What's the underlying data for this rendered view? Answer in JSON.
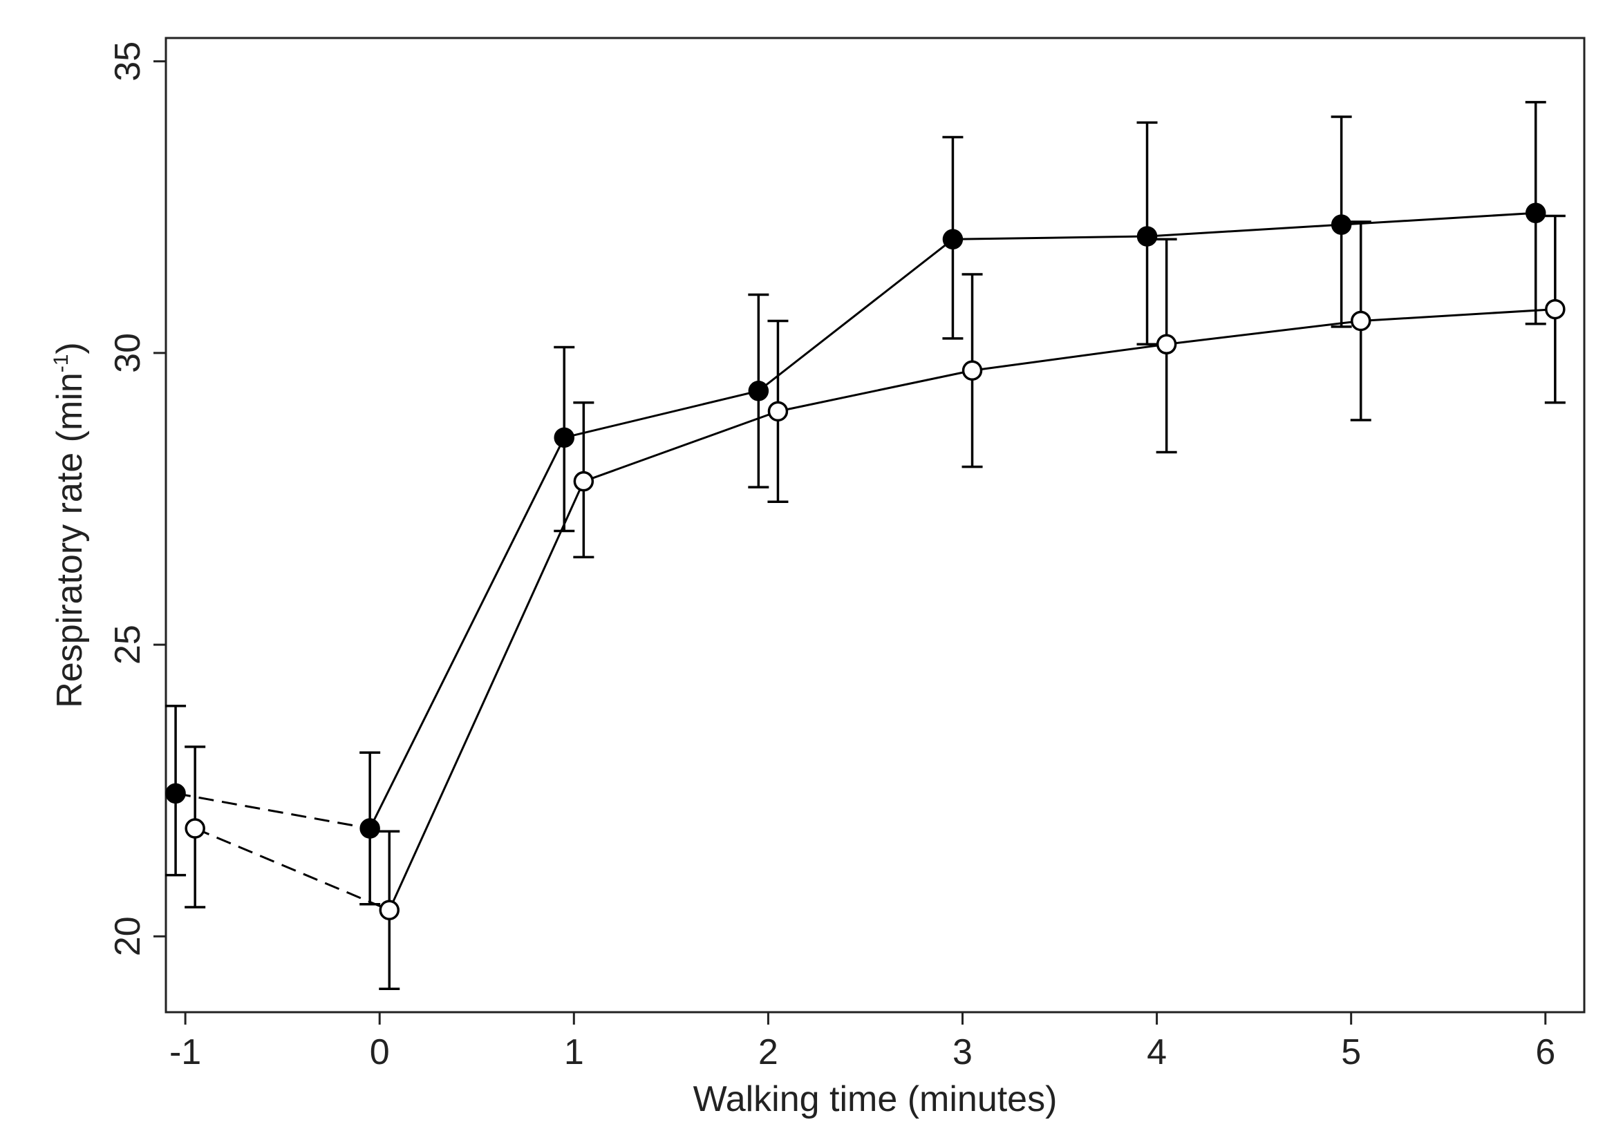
{
  "chart_data": {
    "type": "line",
    "title": "",
    "xlabel": "Walking time  (minutes)",
    "ylabel_main": "Respiratory rate (min",
    "ylabel_sup": "-1",
    "ylabel_close": ")",
    "xlim": [
      -1.1,
      6.2
    ],
    "ylim": [
      18.7,
      35.4
    ],
    "xticks": [
      -1,
      0,
      1,
      2,
      3,
      4,
      5,
      6
    ],
    "xtick_labels": [
      "-1",
      "0",
      "1",
      "2",
      "3",
      "4",
      "5",
      "6"
    ],
    "yticks": [
      20,
      25,
      30,
      35
    ],
    "ytick_labels": [
      "20",
      "25",
      "30",
      "35"
    ],
    "grid": false,
    "series": [
      {
        "name": "filled",
        "marker": "filled-circle",
        "color": "#000000",
        "x": [
          -1.05,
          -0.05,
          0.95,
          1.95,
          2.95,
          3.95,
          4.95,
          5.95
        ],
        "y": [
          22.45,
          21.85,
          28.55,
          29.35,
          31.95,
          32.0,
          32.2,
          32.4
        ],
        "err_low": [
          21.05,
          20.55,
          26.95,
          27.7,
          30.25,
          30.15,
          30.45,
          30.5
        ],
        "err_high": [
          23.95,
          23.15,
          30.1,
          31.0,
          33.7,
          33.95,
          34.05,
          34.3
        ]
      },
      {
        "name": "open",
        "marker": "open-circle",
        "color": "#000000",
        "x": [
          -0.95,
          0.05,
          1.05,
          2.05,
          3.05,
          4.05,
          5.05,
          6.05
        ],
        "y": [
          21.85,
          20.45,
          27.8,
          29.0,
          29.7,
          30.15,
          30.55,
          30.75
        ],
        "err_low": [
          20.5,
          19.1,
          26.5,
          27.45,
          28.05,
          28.3,
          28.85,
          29.15
        ],
        "err_high": [
          23.25,
          21.8,
          29.15,
          30.55,
          31.35,
          31.95,
          32.25,
          32.35
        ]
      }
    ],
    "dashed_segment": "between x=-1 and x=0 (pre-walk)",
    "legend": "none"
  }
}
